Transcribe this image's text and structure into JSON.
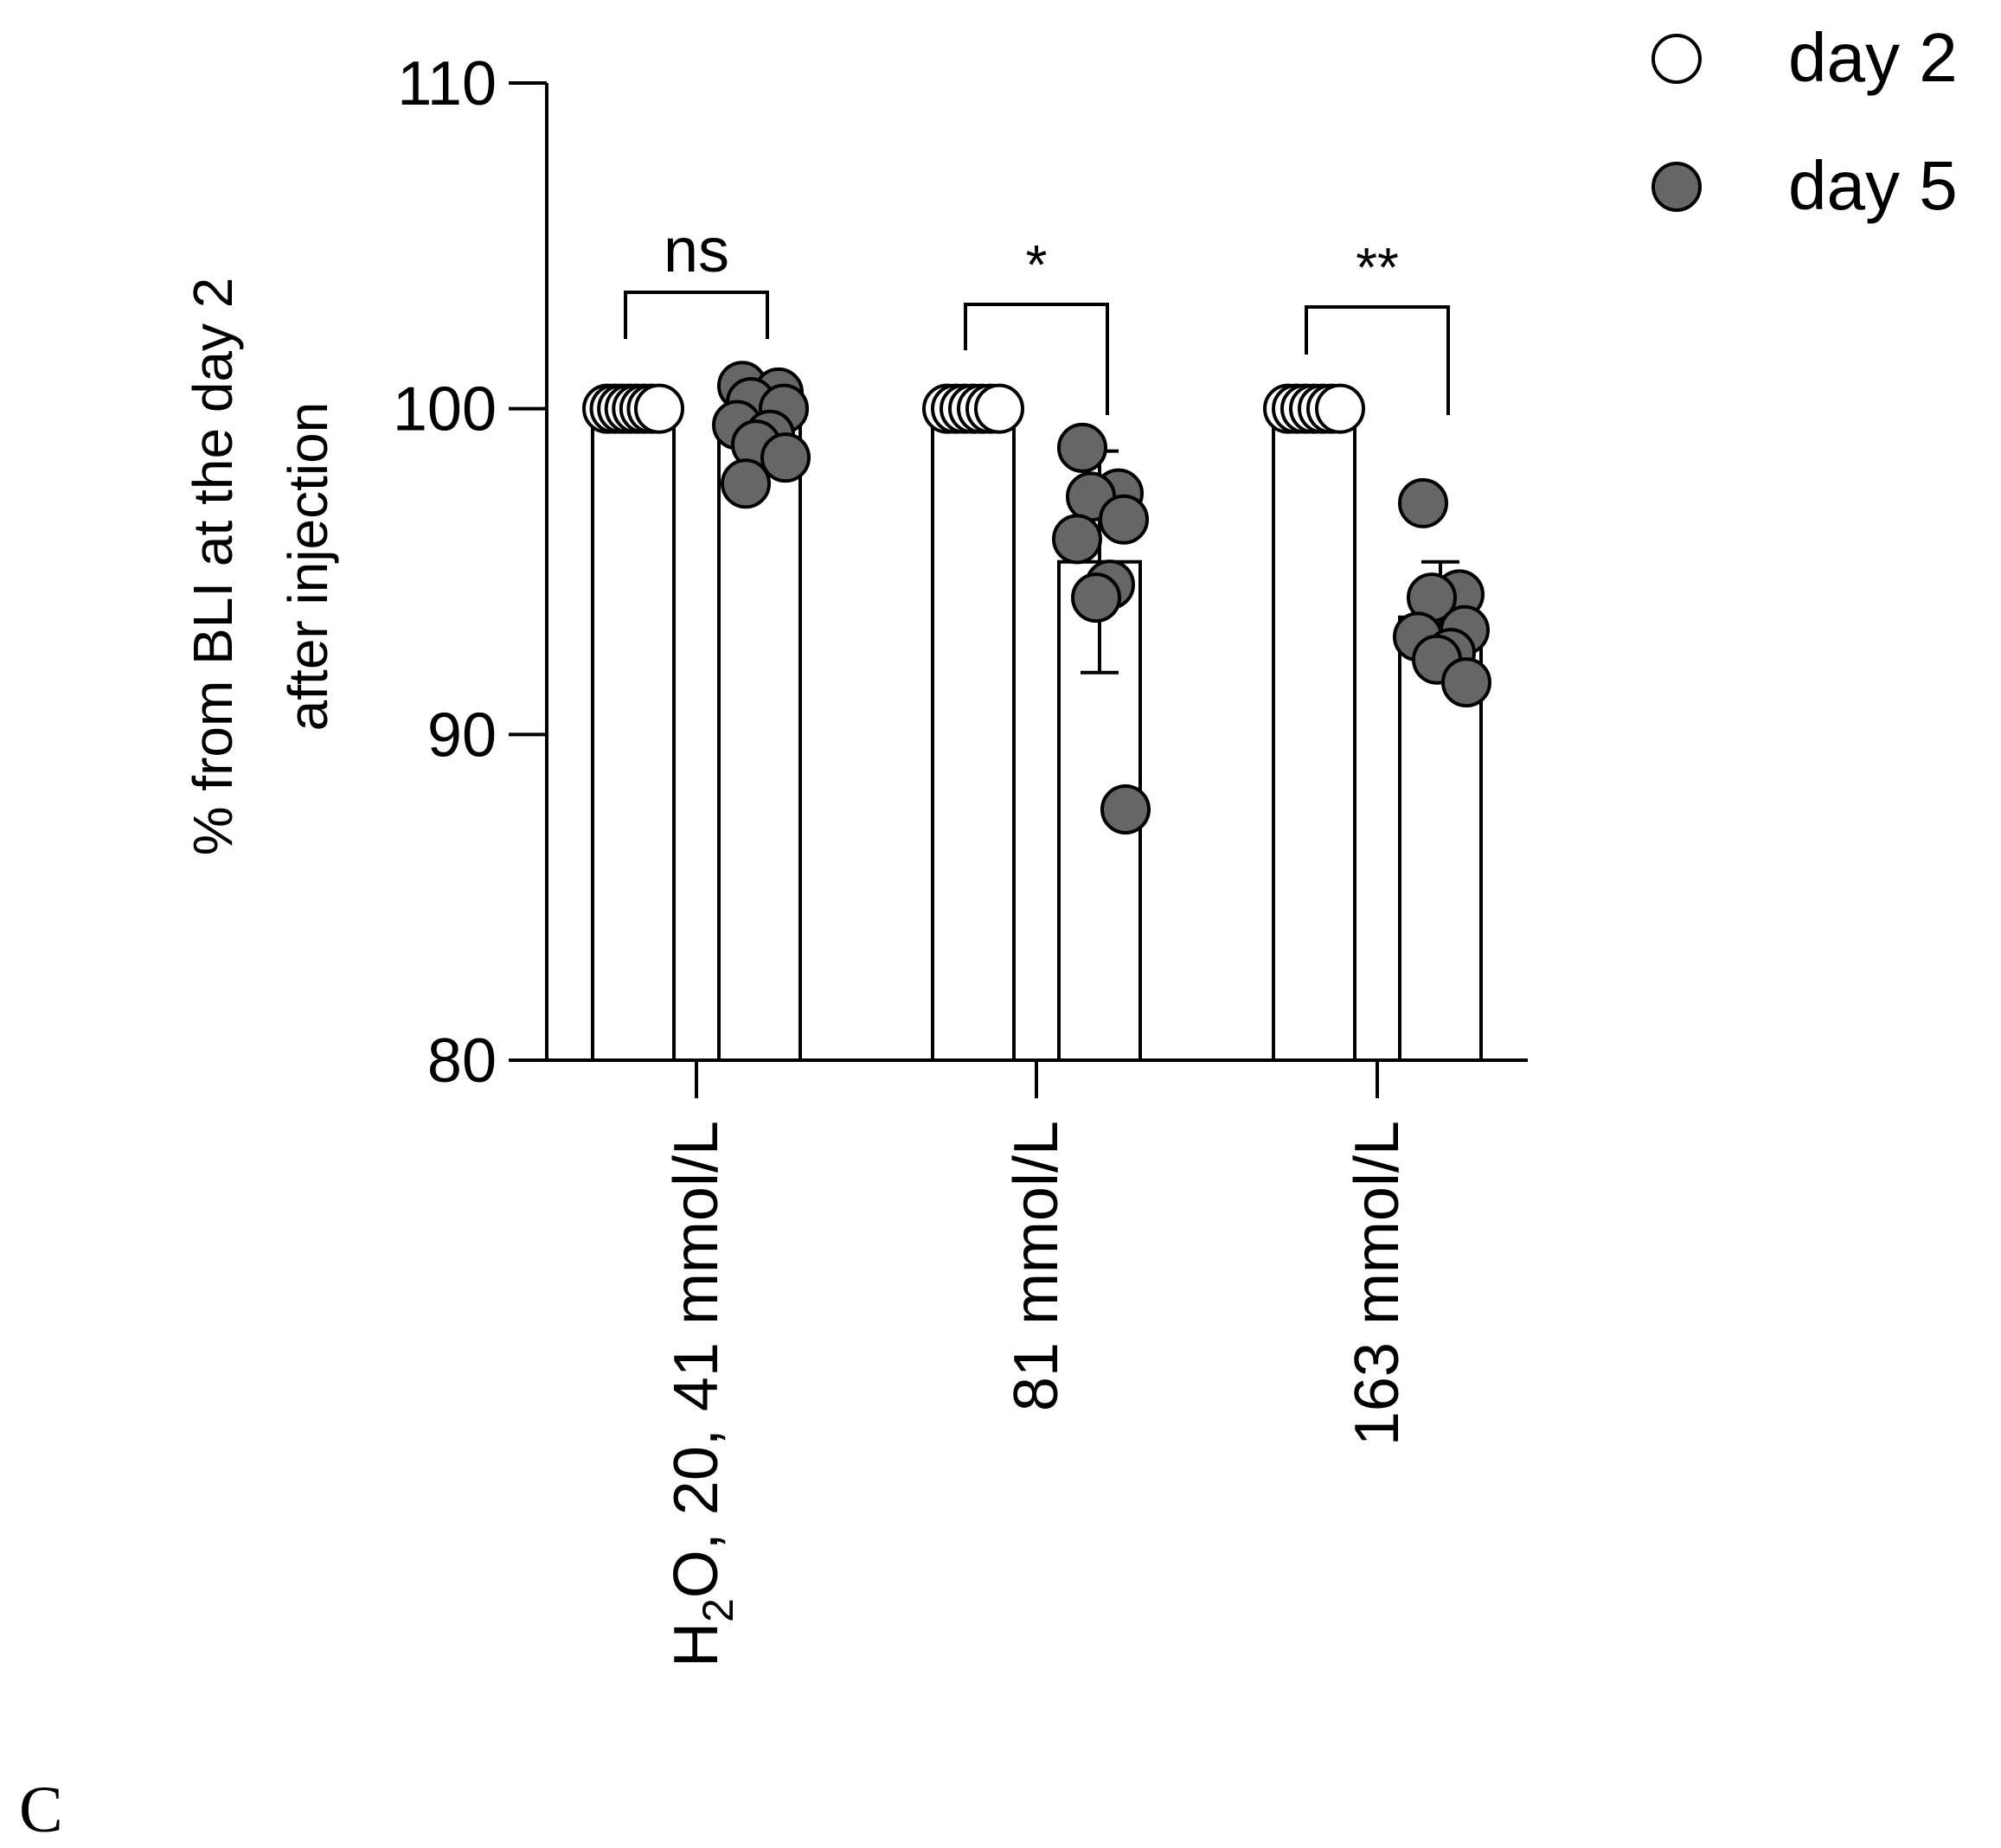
{
  "chart_data": {
    "type": "bar",
    "title": "",
    "ylabel_line1": "% from BLI at the day 2",
    "ylabel_line2": "after injection",
    "xlabel": "",
    "ylim": [
      80,
      110
    ],
    "yticks": [
      "80",
      "90",
      "100",
      "110"
    ],
    "yticks_values": [
      80,
      90,
      100,
      110
    ],
    "grid": false,
    "legend_position": "top-right",
    "categories": [
      {
        "pre": "H",
        "sub": "2",
        "post": "O, 20, 41 mmol/L"
      },
      {
        "pre": "81 mmol/L",
        "sub": "",
        "post": ""
      },
      {
        "pre": "163 mmol/L",
        "sub": "",
        "post": ""
      }
    ],
    "series": [
      {
        "name": "day 2",
        "marker": "open-circle",
        "fill": "#ffffff",
        "values": [
          100,
          100,
          100
        ],
        "error": [
          0,
          0,
          0
        ],
        "points": [
          [
            100,
            100,
            100,
            100,
            100,
            100,
            100,
            100
          ],
          [
            100,
            100,
            100,
            100,
            100,
            100,
            100
          ],
          [
            100,
            100,
            100,
            100,
            100,
            100,
            100
          ]
        ]
      },
      {
        "name": "day 5",
        "marker": "filled-circle",
        "fill": "#666666",
        "values": [
          99.5,
          95.3,
          93.6
        ],
        "error": [
          0.3,
          3.4,
          1.7
        ],
        "points": [
          [
            100.7,
            100.5,
            100.2,
            100.0,
            99.5,
            99.2,
            98.9,
            98.5,
            97.7
          ],
          [
            98.8,
            97.4,
            97.3,
            96.6,
            96.0,
            94.6,
            94.2,
            87.7
          ],
          [
            97.1,
            94.3,
            94.2,
            93.2,
            93.0,
            92.5,
            92.3,
            91.6
          ]
        ]
      }
    ],
    "significance": [
      "ns",
      "*",
      "**"
    ]
  },
  "panel_label": "C",
  "colors": {
    "axis": "#000000",
    "bar_fill": "#ffffff",
    "day5_fill": "#666666"
  }
}
